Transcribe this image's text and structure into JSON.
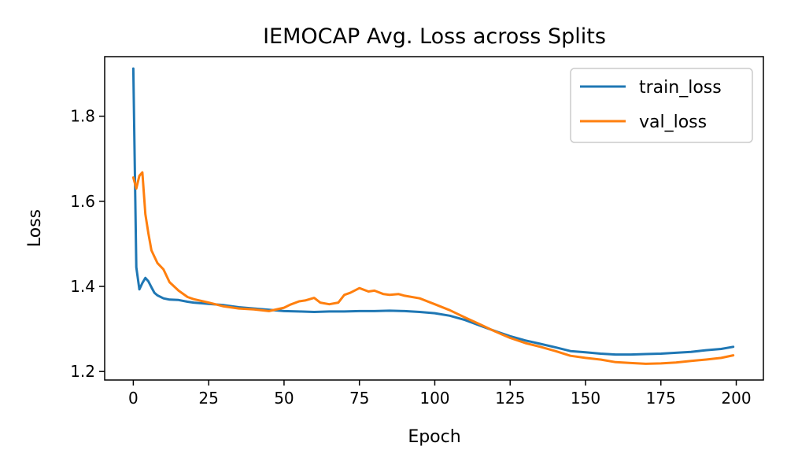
{
  "chart_data": {
    "type": "line",
    "title": "IEMOCAP Avg. Loss across Splits",
    "xlabel": "Epoch",
    "ylabel": "Loss",
    "xlim": [
      -9.5,
      209
    ],
    "ylim": [
      1.18,
      1.94
    ],
    "xticks": [
      0,
      25,
      50,
      75,
      100,
      125,
      150,
      175,
      200
    ],
    "yticks": [
      1.2,
      1.4,
      1.6,
      1.8
    ],
    "ytick_labels": [
      "1.2",
      "1.4",
      "1.6",
      "1.8"
    ],
    "grid": false,
    "legend_position": "top-right",
    "series": [
      {
        "name": "train_loss",
        "color": "#1f77b4",
        "x": [
          0,
          1,
          2,
          3,
          4,
          5,
          6,
          7,
          8,
          10,
          12,
          15,
          18,
          20,
          25,
          30,
          35,
          40,
          45,
          50,
          55,
          60,
          65,
          70,
          75,
          80,
          85,
          90,
          95,
          100,
          105,
          110,
          115,
          120,
          125,
          130,
          135,
          140,
          145,
          150,
          155,
          160,
          165,
          170,
          175,
          180,
          185,
          190,
          195,
          199
        ],
        "y": [
          1.912,
          1.445,
          1.393,
          1.408,
          1.42,
          1.412,
          1.398,
          1.385,
          1.379,
          1.372,
          1.369,
          1.368,
          1.364,
          1.362,
          1.359,
          1.356,
          1.351,
          1.348,
          1.345,
          1.342,
          1.341,
          1.34,
          1.341,
          1.341,
          1.342,
          1.342,
          1.343,
          1.342,
          1.34,
          1.337,
          1.331,
          1.321,
          1.308,
          1.295,
          1.283,
          1.273,
          1.265,
          1.257,
          1.248,
          1.245,
          1.242,
          1.24,
          1.24,
          1.241,
          1.242,
          1.244,
          1.246,
          1.25,
          1.253,
          1.258
        ]
      },
      {
        "name": "val_loss",
        "color": "#ff7f0e",
        "x": [
          0,
          1,
          2,
          3,
          4,
          5,
          6,
          7,
          8,
          10,
          12,
          15,
          18,
          20,
          25,
          30,
          35,
          40,
          45,
          50,
          52,
          55,
          57,
          60,
          62,
          65,
          68,
          70,
          72,
          75,
          78,
          80,
          83,
          85,
          88,
          90,
          95,
          100,
          105,
          110,
          115,
          120,
          125,
          130,
          135,
          140,
          145,
          150,
          155,
          160,
          165,
          170,
          175,
          180,
          185,
          190,
          195,
          199
        ],
        "y": [
          1.656,
          1.63,
          1.66,
          1.668,
          1.57,
          1.525,
          1.485,
          1.47,
          1.455,
          1.44,
          1.41,
          1.39,
          1.375,
          1.37,
          1.362,
          1.353,
          1.348,
          1.346,
          1.342,
          1.35,
          1.357,
          1.365,
          1.367,
          1.373,
          1.362,
          1.358,
          1.362,
          1.38,
          1.385,
          1.396,
          1.388,
          1.39,
          1.382,
          1.38,
          1.382,
          1.378,
          1.372,
          1.358,
          1.344,
          1.327,
          1.311,
          1.294,
          1.279,
          1.267,
          1.258,
          1.248,
          1.237,
          1.232,
          1.228,
          1.222,
          1.22,
          1.218,
          1.219,
          1.221,
          1.225,
          1.228,
          1.232,
          1.238
        ]
      }
    ]
  }
}
